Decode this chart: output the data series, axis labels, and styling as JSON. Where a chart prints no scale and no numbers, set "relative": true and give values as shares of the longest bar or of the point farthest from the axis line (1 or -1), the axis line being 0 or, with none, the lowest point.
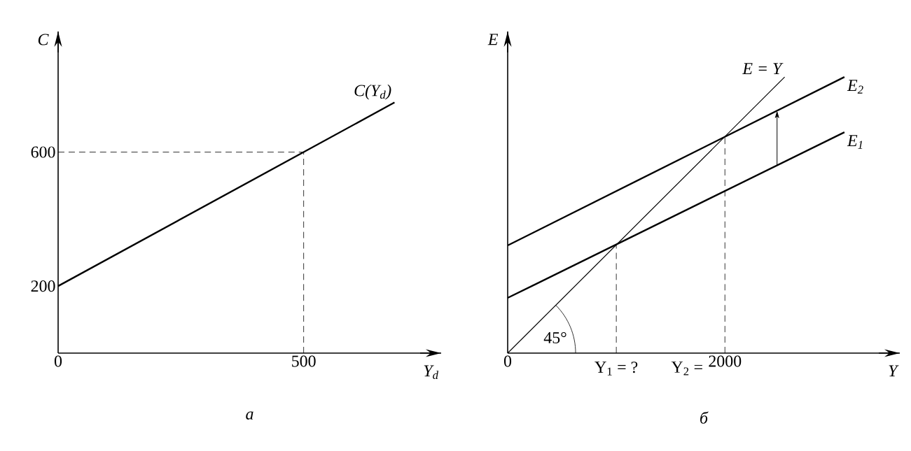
{
  "chart_data": [
    {
      "type": "line",
      "title": "а",
      "xlabel": "Y$_{d}$",
      "ylabel": "C",
      "xlim": [
        0,
        780
      ],
      "ylim": [
        0,
        960
      ],
      "xticks": [
        0,
        500
      ],
      "yticks": [
        200,
        600
      ],
      "series": [
        {
          "name": "C(Y$_{d}$)",
          "color": "#000000",
          "x": [
            0,
            685
          ],
          "values": [
            200,
            748
          ]
        }
      ],
      "ref_lines": [
        {
          "axis": "x",
          "value": 500,
          "line_style": "dashed"
        },
        {
          "axis": "y",
          "value": 600,
          "line_style": "dashed"
        }
      ]
    },
    {
      "type": "line",
      "title": "б",
      "xlabel": "Y",
      "ylabel": "E",
      "xlim": [
        0,
        3610
      ],
      "xticks": [
        0,
        2000
      ],
      "relative": true,
      "annotations": [
        "45°",
        {
          "text": "Y$_{1}$ = ?",
          "x": 1000,
          "y": 0
        },
        {
          "text": "Y$_{2}$ =",
          "x": 2000,
          "y": 0
        }
      ],
      "series": [
        {
          "name": "E = Y",
          "color": "#000000",
          "x": [
            0,
            2550
          ],
          "values": [
            0,
            1
          ]
        },
        {
          "name": "E$_{2}$",
          "color": "#000000",
          "x": [
            0,
            3100
          ],
          "values": [
            0.39,
            1
          ]
        },
        {
          "name": "E$_{1}$",
          "color": "#000000",
          "x": [
            0,
            3100
          ],
          "values": [
            0.2,
            0.8
          ]
        }
      ],
      "ref_lines": [
        {
          "axis": "x",
          "value": 1000,
          "line_style": "dashed"
        },
        {
          "axis": "x",
          "value": 2000,
          "line_style": "dashed"
        }
      ]
    }
  ]
}
